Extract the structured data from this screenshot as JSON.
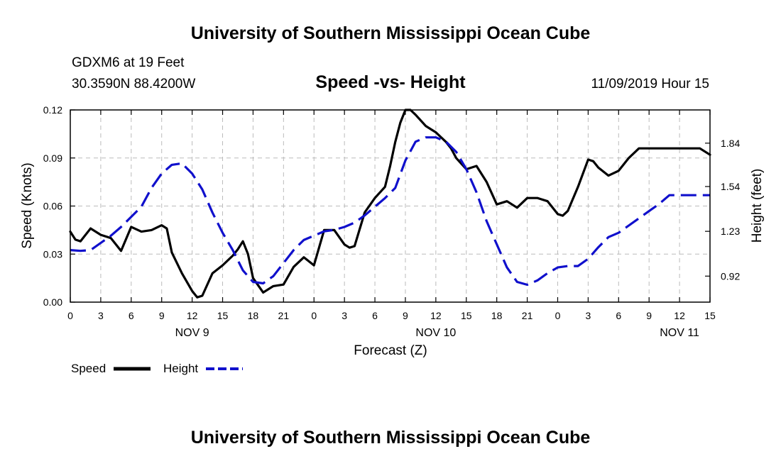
{
  "header": {
    "title": "University of Southern Mississippi Ocean Cube",
    "station": "GDXM6 at 19 Feet",
    "coords": "30.3590N 88.4200W",
    "forecast_time": "11/09/2019 Hour 15"
  },
  "footer": {
    "title": "University of Southern Mississippi Ocean Cube"
  },
  "colors": {
    "speed": "#000000",
    "height": "#1010cc",
    "grid": "#bbbbbb"
  },
  "chart_data": {
    "type": "line",
    "title": "Speed -vs- Height",
    "xlabel": "Forecast (Z)",
    "ylabel": "Speed (Knots)",
    "y2label": "Height (feet)",
    "xlim": [
      0,
      63
    ],
    "ylim": [
      0,
      0.12
    ],
    "y2lim": [
      0.74,
      2.07
    ],
    "x_ticks": [
      0,
      3,
      6,
      9,
      12,
      15,
      18,
      21,
      24,
      27,
      30,
      33,
      36,
      39,
      42,
      45,
      48,
      51,
      54,
      57,
      60,
      63
    ],
    "x_tick_labels": [
      "0",
      "3",
      "6",
      "9",
      "12",
      "15",
      "18",
      "21",
      "0",
      "3",
      "6",
      "9",
      "12",
      "15",
      "18",
      "21",
      "0",
      "3",
      "6",
      "9",
      "12",
      "15"
    ],
    "y_ticks": [
      0,
      0.03,
      0.06,
      0.09,
      0.12
    ],
    "y_tick_labels": [
      "0.00",
      "0.03",
      "0.06",
      "0.09",
      "0.12"
    ],
    "y2_ticks": [
      0.92,
      1.23,
      1.54,
      1.84
    ],
    "y2_tick_labels": [
      "0.92",
      "1.23",
      "1.54",
      "1.84"
    ],
    "day_labels": [
      {
        "x": 12,
        "label": "NOV 9"
      },
      {
        "x": 36,
        "label": "NOV 10"
      },
      {
        "x": 60,
        "label": "NOV 11"
      }
    ],
    "legend": {
      "speed": "Speed",
      "height": "Height"
    },
    "series": [
      {
        "name": "Speed",
        "axis": "left",
        "style": "solid",
        "x": [
          0,
          0.5,
          1,
          2,
          3,
          4,
          5,
          6,
          7,
          8,
          9,
          9.5,
          10,
          11,
          12,
          12.5,
          13,
          14,
          15,
          16,
          16.5,
          17,
          17.5,
          18,
          19,
          20,
          21,
          22,
          23,
          24,
          25,
          26,
          27,
          27.5,
          28,
          29,
          30,
          31,
          31.5,
          32,
          32.5,
          33,
          33.5,
          34,
          35,
          36,
          37,
          37.5,
          38,
          39,
          40,
          41,
          42,
          43,
          44,
          45,
          45.5,
          46,
          47,
          48,
          48.5,
          49,
          50,
          51,
          51.5,
          52,
          53,
          54,
          55,
          56,
          57,
          58,
          59,
          59.5,
          60,
          61,
          62,
          63
        ],
        "values": [
          0.044,
          0.039,
          0.038,
          0.046,
          0.042,
          0.04,
          0.032,
          0.047,
          0.044,
          0.045,
          0.048,
          0.046,
          0.031,
          0.018,
          0.007,
          0.003,
          0.004,
          0.018,
          0.023,
          0.029,
          0.033,
          0.038,
          0.03,
          0.015,
          0.006,
          0.01,
          0.011,
          0.022,
          0.028,
          0.023,
          0.045,
          0.045,
          0.036,
          0.034,
          0.035,
          0.056,
          0.065,
          0.072,
          0.085,
          0.1,
          0.112,
          0.12,
          0.12,
          0.117,
          0.11,
          0.106,
          0.1,
          0.096,
          0.09,
          0.083,
          0.085,
          0.075,
          0.061,
          0.063,
          0.059,
          0.065,
          0.065,
          0.065,
          0.063,
          0.055,
          0.054,
          0.057,
          0.072,
          0.089,
          0.088,
          0.084,
          0.079,
          0.082,
          0.09,
          0.096,
          0.096,
          0.096,
          0.096,
          0.096,
          0.096,
          0.096,
          0.096,
          0.092
        ]
      },
      {
        "name": "Height",
        "axis": "right",
        "style": "dashed",
        "x": [
          0,
          1,
          2,
          3,
          4,
          5,
          6,
          7,
          8,
          9,
          10,
          11,
          12,
          13,
          14,
          15,
          16,
          17,
          18,
          19,
          20,
          21,
          22,
          23,
          24,
          25,
          26,
          27,
          28,
          29,
          30,
          31,
          32,
          33,
          34,
          35,
          36,
          37,
          38,
          39,
          40,
          41,
          42,
          43,
          44,
          45,
          46,
          47,
          48,
          49,
          50,
          51,
          52,
          53,
          54,
          55,
          56,
          57,
          58,
          59,
          60,
          61,
          62,
          63
        ],
        "values": [
          1.1,
          1.095,
          1.1,
          1.15,
          1.2,
          1.26,
          1.33,
          1.4,
          1.53,
          1.63,
          1.69,
          1.7,
          1.63,
          1.52,
          1.36,
          1.22,
          1.1,
          0.96,
          0.88,
          0.87,
          0.92,
          1.01,
          1.1,
          1.17,
          1.2,
          1.23,
          1.24,
          1.26,
          1.29,
          1.34,
          1.4,
          1.46,
          1.53,
          1.72,
          1.85,
          1.88,
          1.88,
          1.85,
          1.78,
          1.66,
          1.5,
          1.3,
          1.14,
          0.98,
          0.88,
          0.86,
          0.89,
          0.94,
          0.98,
          0.99,
          0.99,
          1.04,
          1.12,
          1.19,
          1.22,
          1.27,
          1.32,
          1.37,
          1.42,
          1.48,
          1.48,
          1.48,
          1.48,
          1.48
        ]
      }
    ]
  }
}
